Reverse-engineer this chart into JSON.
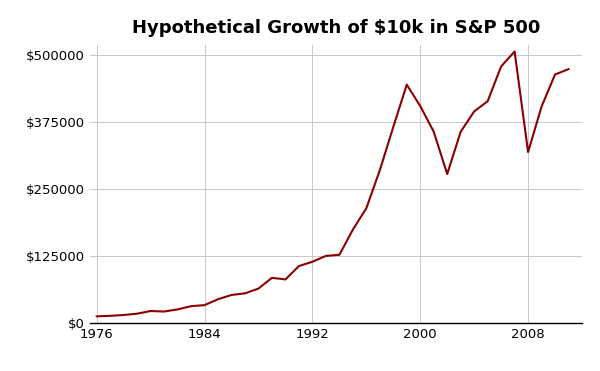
{
  "title": "Hypothetical Growth of $10k in S&P 500",
  "x_years": [
    1976,
    1977,
    1978,
    1979,
    1980,
    1981,
    1982,
    1983,
    1984,
    1985,
    1986,
    1987,
    1988,
    1989,
    1990,
    1991,
    1992,
    1993,
    1994,
    1995,
    1996,
    1997,
    1998,
    1999,
    2000,
    2001,
    2002,
    2003,
    2004,
    2005,
    2006,
    2007,
    2008,
    2009,
    2010,
    2011
  ],
  "y_values": [
    12000,
    13000,
    14500,
    17000,
    22000,
    21000,
    25000,
    31000,
    33000,
    44000,
    52000,
    55000,
    64000,
    84000,
    81000,
    106000,
    114000,
    125000,
    127000,
    174000,
    214000,
    285000,
    366000,
    445000,
    405000,
    357000,
    278000,
    357000,
    395000,
    414000,
    479000,
    507000,
    319000,
    404000,
    464000,
    474000
  ],
  "line_color": "#8b0000",
  "line_width": 1.5,
  "background_color": "#ffffff",
  "grid_color": "#c8c8c8",
  "x_ticks": [
    1976,
    1984,
    1992,
    2000,
    2008
  ],
  "y_ticks": [
    0,
    125000,
    250000,
    375000,
    500000
  ],
  "y_tick_labels": [
    "$0",
    "$125000",
    "$250000",
    "$375000",
    "$500000"
  ],
  "xlim": [
    1975.5,
    2012
  ],
  "ylim": [
    0,
    520000
  ],
  "title_fontsize": 13,
  "tick_fontsize": 9.5
}
